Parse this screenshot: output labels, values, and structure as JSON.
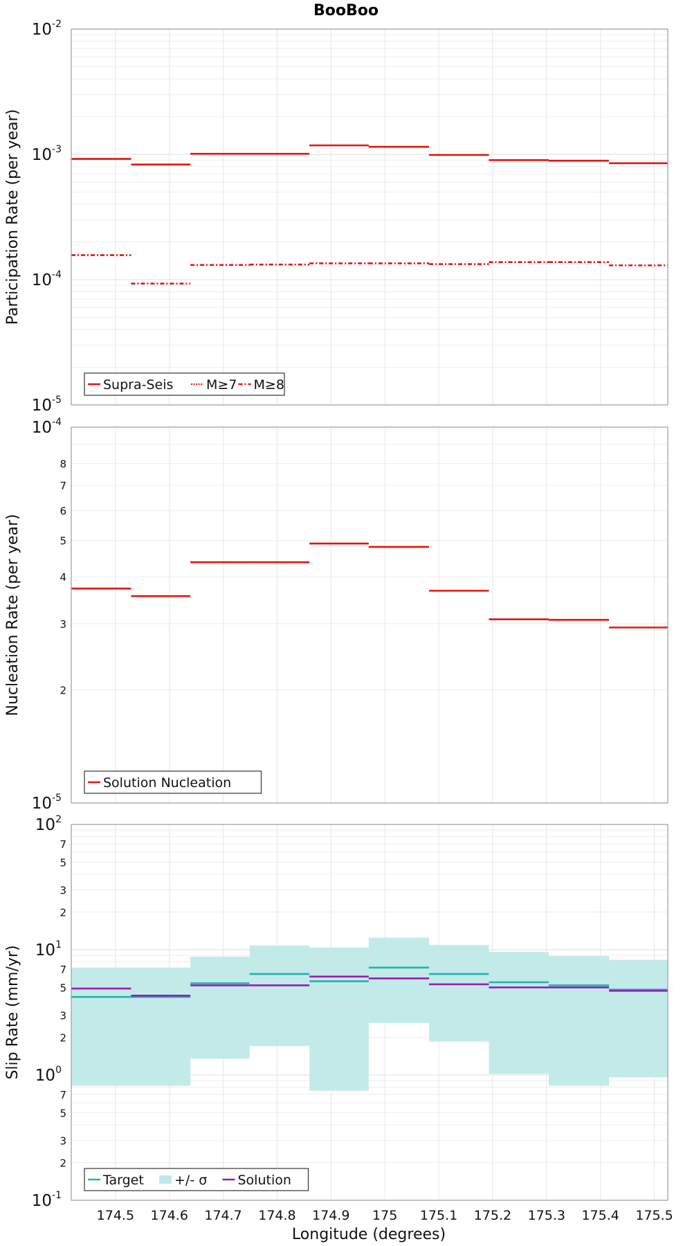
{
  "figure": {
    "title": "BooBoo",
    "xlabel": "Longitude (degrees)"
  },
  "chart_data": [
    {
      "type": "line",
      "ylabel": "Participation Rate (per year)",
      "yscale": "log",
      "ylim": [
        1e-05,
        0.01
      ],
      "xlim": [
        174.418,
        175.525
      ],
      "grid": true,
      "legend_position": "bottom-left",
      "bin_edges": [
        174.418,
        174.529,
        174.639,
        174.749,
        174.86,
        174.97,
        175.082,
        175.193,
        175.304,
        175.416,
        175.525
      ],
      "series": [
        {
          "name": "Supra-Seis",
          "style": "solid",
          "color": "#e8120c",
          "values": [
            0.00092,
            0.00083,
            0.00101,
            0.00101,
            0.00118,
            0.00115,
            0.00099,
            0.0009,
            0.00089,
            0.00085
          ]
        },
        {
          "name": "M≥7",
          "style": "dotted",
          "color": "#e8120c",
          "values": [
            0.00092,
            0.00083,
            0.00101,
            0.00101,
            0.00118,
            0.00115,
            0.00099,
            0.0009,
            0.00089,
            0.00085
          ]
        },
        {
          "name": "M≥8",
          "style": "dashdot",
          "color": "#e8120c",
          "values": [
            0.000157,
            9.3e-05,
            0.000131,
            0.000132,
            0.000135,
            0.000135,
            0.000133,
            0.000138,
            0.000138,
            0.00013
          ]
        }
      ],
      "y_decades": [
        "-5",
        "-4",
        "-3",
        "-2"
      ]
    },
    {
      "type": "line",
      "ylabel": "Nucleation Rate (per year)",
      "yscale": "log",
      "ylim": [
        1e-05,
        0.0001
      ],
      "xlim": [
        174.418,
        175.525
      ],
      "grid": true,
      "legend_position": "bottom-left",
      "bin_edges": [
        174.418,
        174.529,
        174.639,
        174.749,
        174.86,
        174.97,
        175.082,
        175.193,
        175.304,
        175.416,
        175.525
      ],
      "series": [
        {
          "name": "Solution Nucleation",
          "style": "solid",
          "color": "#e8120c",
          "values": [
            3.72e-05,
            3.55e-05,
            4.37e-05,
            4.37e-05,
            4.9e-05,
            4.8e-05,
            3.67e-05,
            3.08e-05,
            3.07e-05,
            2.93e-05
          ]
        }
      ],
      "y_decades": [
        "-5",
        "-4"
      ],
      "y_minor_labels": [
        "2",
        "3",
        "4",
        "5",
        "6",
        "7",
        "8"
      ]
    },
    {
      "type": "line",
      "ylabel": "Slip Rate (mm/yr)",
      "yscale": "log",
      "ylim": [
        0.1,
        100
      ],
      "xlim": [
        174.418,
        175.525
      ],
      "grid": true,
      "legend_position": "bottom-left",
      "bin_edges": [
        174.418,
        174.529,
        174.639,
        174.749,
        174.86,
        174.97,
        175.082,
        175.193,
        175.304,
        175.416,
        175.525
      ],
      "series": [
        {
          "name": "Target",
          "style": "solid",
          "color": "#1fb3ae",
          "values": [
            4.2,
            4.2,
            5.4,
            6.4,
            5.6,
            7.2,
            6.4,
            5.5,
            5.2,
            4.8
          ]
        },
        {
          "name": "+/- σ",
          "style": "band",
          "color": "#bfe9e8",
          "upper": [
            7.2,
            7.2,
            8.8,
            10.8,
            10.4,
            12.5,
            10.9,
            9.6,
            8.9,
            8.3
          ],
          "lower": [
            0.82,
            0.82,
            1.35,
            1.7,
            0.75,
            2.6,
            1.85,
            1.02,
            0.82,
            0.96
          ]
        },
        {
          "name": "Solution",
          "style": "solid",
          "color": "#9b19b8",
          "values": [
            4.9,
            4.3,
            5.2,
            5.2,
            6.1,
            5.9,
            5.3,
            5.0,
            5.0,
            4.7
          ]
        }
      ],
      "y_decades": [
        "-1",
        "0",
        "1",
        "2"
      ],
      "y_minor_labels": [
        "2",
        "3",
        "5",
        "7"
      ]
    }
  ],
  "x_ticks": [
    "174.5",
    "174.6",
    "174.7",
    "174.8",
    "174.9",
    "175",
    "175.1",
    "175.2",
    "175.3",
    "175.4",
    "175.5"
  ],
  "decade_base": "10"
}
